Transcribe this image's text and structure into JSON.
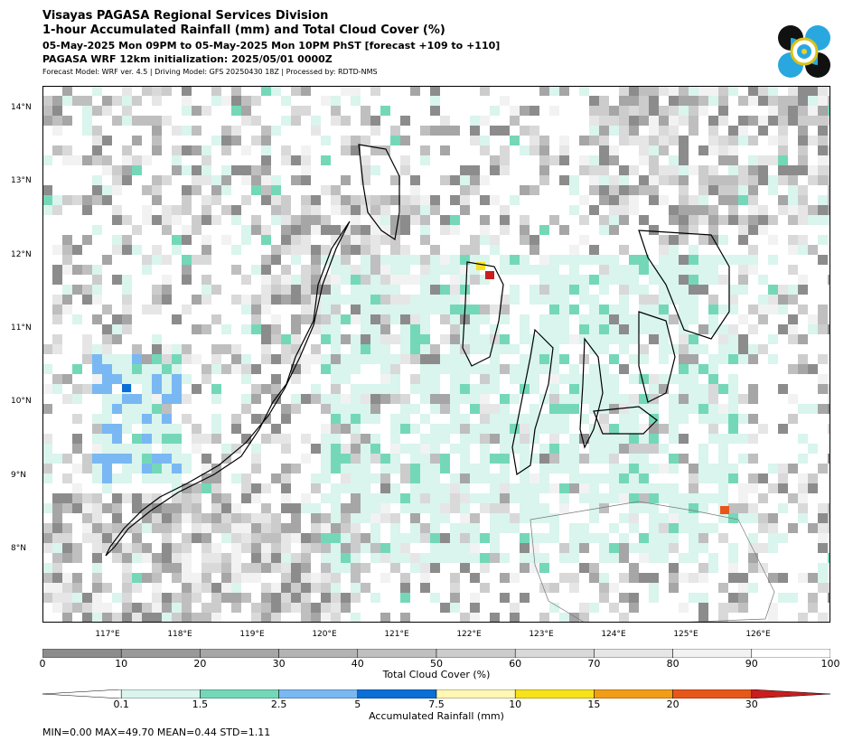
{
  "header": {
    "line1": "Visayas PAGASA Regional Services Division",
    "line2": "1-hour Accumulated Rainfall (mm) and Total Cloud Cover (%)",
    "line3": "05-May-2025 Mon 09PM to 05-May-2025 Mon 10PM PhST [forecast +109 to +110]",
    "line4": "PAGASA WRF 12km initialization: 2025/05/01 0000Z",
    "line5": "Forecast Model: WRF ver. 4.5 | Driving Model: GFS 20250430 18Z | Processed by: RDTD-NMS"
  },
  "map": {
    "lon_labels": [
      "117°E",
      "118°E",
      "119°E",
      "120°E",
      "121°E",
      "122°E",
      "123°E",
      "124°E",
      "125°E",
      "126°E"
    ],
    "lat_labels": [
      "14°N",
      "13°N",
      "12°N",
      "11°N",
      "10°N",
      "9°N",
      "8°N"
    ],
    "land_color": "#000000",
    "ocean_color": "#ffffff"
  },
  "cloud_legend": {
    "title": "Total Cloud Cover (%)",
    "ticks": [
      "0",
      "10",
      "20",
      "30",
      "40",
      "50",
      "60",
      "70",
      "80",
      "90",
      "100"
    ],
    "colors": [
      "#8c8c8c",
      "#999999",
      "#a6a6a6",
      "#b3b3b3",
      "#bfbfbf",
      "#cccccc",
      "#d9d9d9",
      "#e6e6e6",
      "#f2f2f2",
      "#ffffff"
    ]
  },
  "rain_legend": {
    "title": "Accumulated Rainfall (mm)",
    "ticks": [
      "0.1",
      "1.5",
      "2.5",
      "5",
      "7.5",
      "10",
      "15",
      "20",
      "30"
    ],
    "colors": [
      "#ffffff",
      "#d9f5ed",
      "#74d8b8",
      "#79b8f2",
      "#0a6fd6",
      "#fff7b3",
      "#f7e21a",
      "#f29d18",
      "#e8571a",
      "#c81e1e"
    ]
  },
  "stats": "MIN=0.00   MAX=49.70   MEAN=0.44   STD=1.11"
}
